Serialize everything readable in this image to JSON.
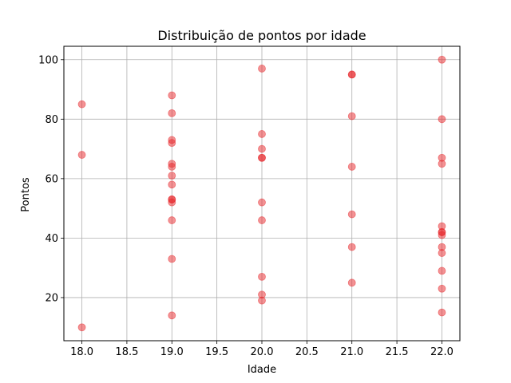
{
  "chart_data": {
    "type": "scatter",
    "title": "Distribuição de pontos por idade",
    "xlabel": "Idade",
    "ylabel": "Pontos",
    "xlim": [
      17.8,
      22.2
    ],
    "ylim": [
      5.5,
      104.5
    ],
    "xticks": [
      18.0,
      18.5,
      19.0,
      19.5,
      20.0,
      20.5,
      21.0,
      21.5,
      22.0
    ],
    "xtick_labels": [
      "18.0",
      "18.5",
      "19.0",
      "19.5",
      "20.0",
      "20.5",
      "21.0",
      "21.5",
      "22.0"
    ],
    "yticks": [
      20,
      40,
      60,
      80,
      100
    ],
    "ytick_labels": [
      "20",
      "40",
      "60",
      "80",
      "100"
    ],
    "grid": true,
    "marker_color": "#e8262a",
    "marker_alpha": 0.5,
    "series": [
      {
        "points": [
          {
            "x": 18,
            "y": 85
          },
          {
            "x": 18,
            "y": 68
          },
          {
            "x": 18,
            "y": 10
          },
          {
            "x": 19,
            "y": 88
          },
          {
            "x": 19,
            "y": 82
          },
          {
            "x": 19,
            "y": 73
          },
          {
            "x": 19,
            "y": 72
          },
          {
            "x": 19,
            "y": 65
          },
          {
            "x": 19,
            "y": 64
          },
          {
            "x": 19,
            "y": 61
          },
          {
            "x": 19,
            "y": 58
          },
          {
            "x": 19,
            "y": 53
          },
          {
            "x": 19,
            "y": 53
          },
          {
            "x": 19,
            "y": 52
          },
          {
            "x": 19,
            "y": 46
          },
          {
            "x": 19,
            "y": 33
          },
          {
            "x": 19,
            "y": 14
          },
          {
            "x": 20,
            "y": 97
          },
          {
            "x": 20,
            "y": 75
          },
          {
            "x": 20,
            "y": 70
          },
          {
            "x": 20,
            "y": 67
          },
          {
            "x": 20,
            "y": 67
          },
          {
            "x": 20,
            "y": 52
          },
          {
            "x": 20,
            "y": 46
          },
          {
            "x": 20,
            "y": 27
          },
          {
            "x": 20,
            "y": 21
          },
          {
            "x": 20,
            "y": 19
          },
          {
            "x": 21,
            "y": 95
          },
          {
            "x": 21,
            "y": 95
          },
          {
            "x": 21,
            "y": 81
          },
          {
            "x": 21,
            "y": 64
          },
          {
            "x": 21,
            "y": 48
          },
          {
            "x": 21,
            "y": 37
          },
          {
            "x": 21,
            "y": 25
          },
          {
            "x": 22,
            "y": 100
          },
          {
            "x": 22,
            "y": 80
          },
          {
            "x": 22,
            "y": 67
          },
          {
            "x": 22,
            "y": 65
          },
          {
            "x": 22,
            "y": 44
          },
          {
            "x": 22,
            "y": 42
          },
          {
            "x": 22,
            "y": 42
          },
          {
            "x": 22,
            "y": 41
          },
          {
            "x": 22,
            "y": 37
          },
          {
            "x": 22,
            "y": 35
          },
          {
            "x": 22,
            "y": 29
          },
          {
            "x": 22,
            "y": 23
          },
          {
            "x": 22,
            "y": 15
          }
        ]
      }
    ]
  }
}
